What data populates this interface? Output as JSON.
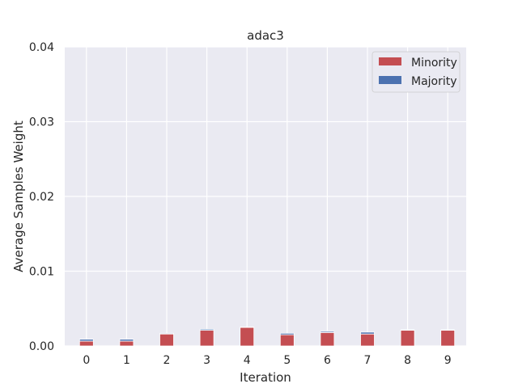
{
  "chart_data": {
    "type": "bar",
    "stacked": true,
    "title": "adac3",
    "xlabel": "Iteration",
    "ylabel": "Average Samples Weight",
    "categories": [
      "0",
      "1",
      "2",
      "3",
      "4",
      "5",
      "6",
      "7",
      "8",
      "9"
    ],
    "series": [
      {
        "name": "Minority",
        "color": "#c44e52",
        "values": [
          0.00065,
          0.00065,
          0.0016,
          0.0021,
          0.0025,
          0.0015,
          0.0018,
          0.0016,
          0.0021,
          0.0021
        ]
      },
      {
        "name": "Majority",
        "color": "#4c72b0",
        "values": [
          0.00025,
          0.00025,
          0.0001,
          0.00015,
          3e-05,
          0.0002,
          0.00015,
          0.00025,
          5e-05,
          5e-05
        ]
      }
    ],
    "ylim": [
      0,
      0.04
    ],
    "yticks": [
      "0.00",
      "0.01",
      "0.02",
      "0.03",
      "0.04"
    ],
    "grid": true,
    "legend_position": "top-right",
    "background": "#eaeaf2"
  }
}
